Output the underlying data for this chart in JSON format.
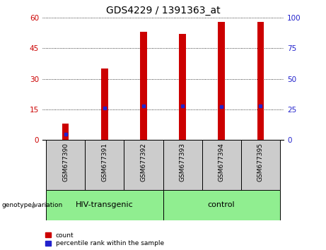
{
  "title": "GDS4229 / 1391363_at",
  "samples": [
    "GSM677390",
    "GSM677391",
    "GSM677392",
    "GSM677393",
    "GSM677394",
    "GSM677395"
  ],
  "counts": [
    8,
    35,
    53,
    52,
    58,
    58
  ],
  "percentile_ranks_mapped": [
    5,
    26,
    28,
    28,
    27,
    28
  ],
  "ylim_left": [
    0,
    60
  ],
  "ylim_right": [
    0,
    100
  ],
  "yticks_left": [
    0,
    15,
    30,
    45,
    60
  ],
  "yticks_right": [
    0,
    25,
    50,
    75,
    100
  ],
  "bar_color": "#cc0000",
  "pct_color": "#2222cc",
  "bar_width": 0.55,
  "groups": [
    {
      "label": "HIV-transgenic",
      "indices": [
        0,
        1,
        2
      ],
      "color": "#90ee90"
    },
    {
      "label": "control",
      "indices": [
        3,
        4,
        5
      ],
      "color": "#90ee90"
    }
  ],
  "group_label": "genotype/variation",
  "legend_count_label": "count",
  "legend_pct_label": "percentile rank within the sample",
  "tick_label_fontsize": 7,
  "title_fontsize": 10,
  "axis_label_color_left": "#cc0000",
  "axis_label_color_right": "#2222cc",
  "grid_color": "#000000",
  "plot_bg_color": "#ffffff",
  "sample_area_color": "#cccccc"
}
